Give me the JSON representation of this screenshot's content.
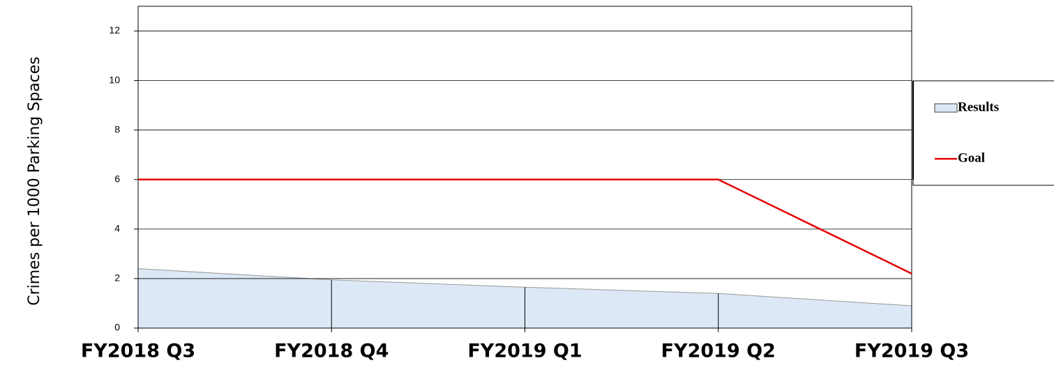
{
  "chart_data": {
    "type": "area",
    "ylabel": "Crimes per 1000 Parking Spaces",
    "categories": [
      "FY2018 Q3",
      "FY2018 Q4",
      "FY2019 Q1",
      "FY2019 Q2",
      "FY2019 Q3"
    ],
    "series": [
      {
        "name": "Results",
        "type": "area",
        "color": "#dce8f5",
        "values": [
          2.4,
          1.95,
          1.65,
          1.4,
          0.9
        ]
      },
      {
        "name": "Goal",
        "type": "line",
        "color": "#e60000",
        "values": [
          6,
          6,
          6,
          6,
          2.2
        ]
      }
    ],
    "ylim": [
      0,
      13
    ],
    "yticks": [
      0,
      2,
      4,
      6,
      8,
      10,
      12
    ],
    "grid": true,
    "legend": "right"
  }
}
